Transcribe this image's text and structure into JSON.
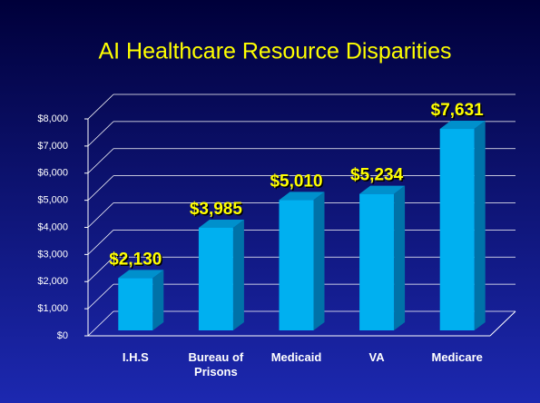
{
  "chart_data": {
    "type": "bar",
    "title": "AI Healthcare Resource Disparities",
    "categories": [
      "I.H.S",
      "Bureau of Prisons",
      "Medicaid",
      "VA",
      "Medicare"
    ],
    "values": [
      2130,
      3985,
      5010,
      5234,
      7631
    ],
    "value_labels": [
      "$2,130",
      "$3,985",
      "$5,010",
      "$5,234",
      "$7,631"
    ],
    "color": "#00b0f0",
    "ylim": [
      0,
      8000
    ],
    "yticks": [
      {
        "value": 0,
        "label": "$0"
      },
      {
        "value": 1000,
        "label": "$1,000"
      },
      {
        "value": 2000,
        "label": "$2,000"
      },
      {
        "value": 3000,
        "label": "$3,000"
      },
      {
        "value": 4000,
        "label": "$4,000"
      },
      {
        "value": 5000,
        "label": "$5,000"
      },
      {
        "value": 6000,
        "label": "$6,000"
      },
      {
        "value": 7000,
        "label": "$7,000"
      },
      {
        "value": 8000,
        "label": "$8,000"
      }
    ],
    "grid": true
  }
}
